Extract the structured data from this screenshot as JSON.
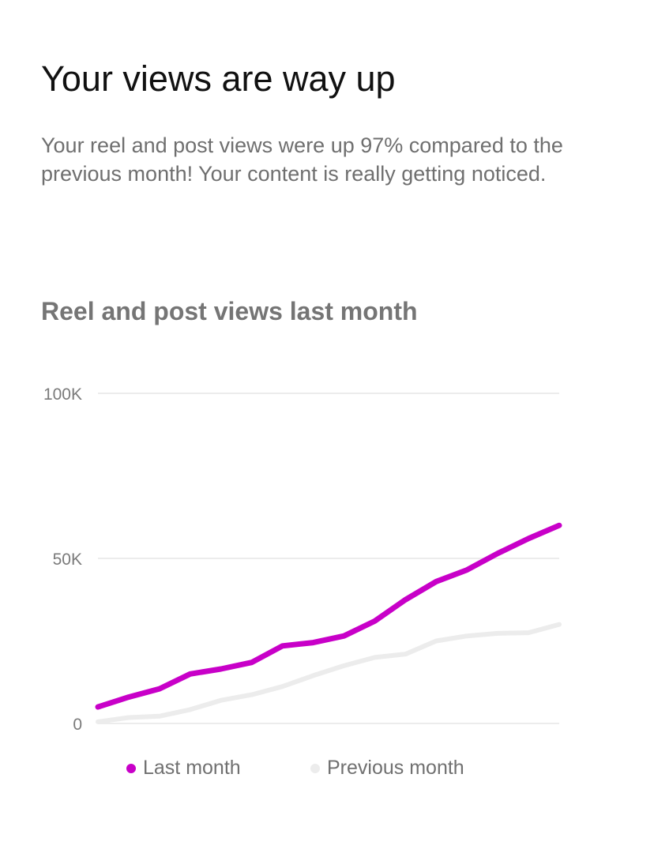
{
  "header": {
    "title": "Your views are way up",
    "description": "Your reel and post views were up 97% compared to the previous month! Your content is really getting noticed."
  },
  "chart_data": {
    "type": "line",
    "title": "Reel and post views last month",
    "xlabel": "",
    "ylabel": "",
    "ylim": [
      0,
      100000
    ],
    "yticks": [
      {
        "value": 0,
        "label": "0"
      },
      {
        "value": 50000,
        "label": "50K"
      },
      {
        "value": 100000,
        "label": "100K"
      }
    ],
    "grid": true,
    "legend_position": "bottom",
    "x": [
      1,
      2,
      3,
      4,
      5,
      6,
      7,
      8,
      9,
      10,
      11,
      12,
      13,
      14,
      15,
      16
    ],
    "series": [
      {
        "name": "Last month",
        "color": "#c800c8",
        "values": [
          5000,
          8000,
          10500,
          15000,
          16500,
          18500,
          23500,
          24500,
          26500,
          31000,
          37500,
          43000,
          46500,
          51500,
          56000,
          60000
        ]
      },
      {
        "name": "Previous month",
        "color": "#ececec",
        "values": [
          500,
          1800,
          2200,
          4200,
          7000,
          8700,
          11200,
          14500,
          17500,
          20000,
          21000,
          25000,
          26500,
          27300,
          27500,
          30000
        ]
      }
    ]
  }
}
